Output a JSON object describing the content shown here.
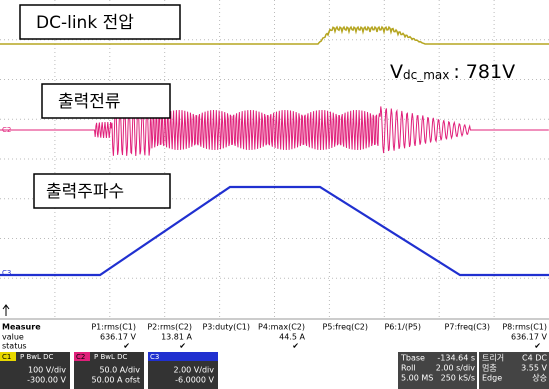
{
  "screen": {
    "label_dc_link": "DC-link 전압",
    "vdc_symbol": "V",
    "vdc_subscript": "dc_max",
    "vdc_value": ": 781V",
    "label_current": "출력전류",
    "label_frequency": "출력주파수",
    "marker_c2": "C2",
    "marker_c3": "C3"
  },
  "measure": {
    "row_labels": [
      "Measure",
      "value",
      "status"
    ],
    "columns": [
      {
        "name": "P1:rms(C1)",
        "value": "636.17 V",
        "status": "✔"
      },
      {
        "name": "P2:rms(C2)",
        "value": "13.81 A",
        "status": "✔"
      },
      {
        "name": "P3:duty(C1)"
      },
      {
        "name": "P4:max(C2)",
        "value": "44.5 A",
        "status": "✔"
      },
      {
        "name": "P5:freq(C2)"
      },
      {
        "name": "P6:1/(P5)"
      },
      {
        "name": "P7:freq(C3)"
      },
      {
        "name": "P8:rms(C1)",
        "value": "636.17 V",
        "status": "✔"
      }
    ]
  },
  "channels": [
    {
      "id": "C1",
      "flags": "P BwL DC",
      "scale": "100 V/div",
      "offset": "-300.00 V"
    },
    {
      "id": "C2",
      "flags": "P BwL DC",
      "scale": "50.0 A/div",
      "offset": "50.00 A ofst"
    },
    {
      "id": "C3",
      "scale": "2.00 V/div",
      "offset": "-6.0000 V"
    }
  ],
  "timebase": {
    "rows": [
      [
        "Tbase",
        "-134.64 s"
      ],
      [
        "Roll",
        "2.00 s/div"
      ],
      [
        "5.00 MS",
        "250 kS/s"
      ]
    ]
  },
  "trigger": {
    "title": "트리거",
    "channel": "C4 DC",
    "rows": [
      [
        "멈춤",
        "3.55 V"
      ],
      [
        "Edge",
        "상승"
      ]
    ]
  }
}
